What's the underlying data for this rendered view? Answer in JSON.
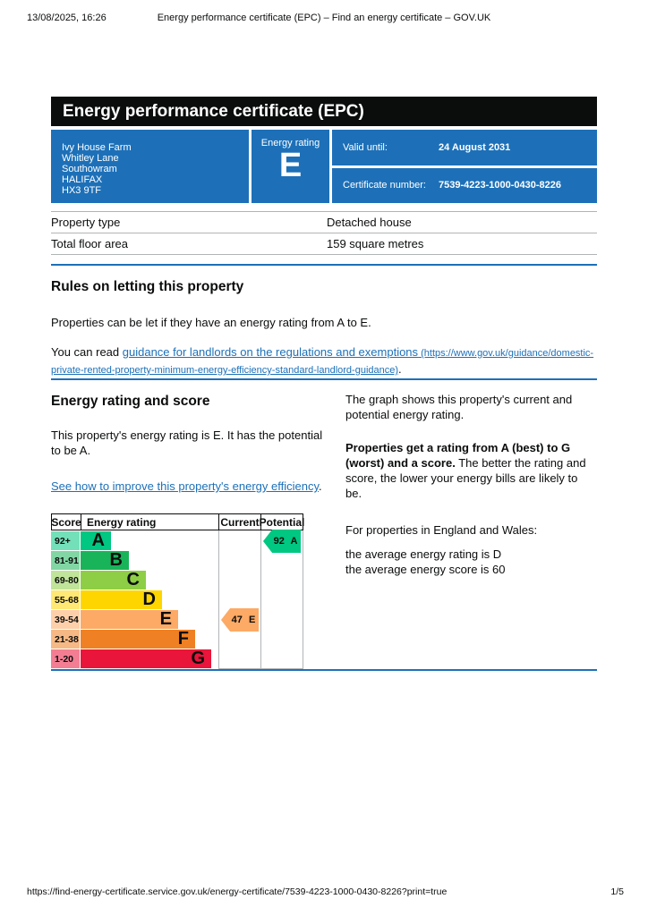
{
  "print_header": {
    "datetime": "13/08/2025, 16:26",
    "title": "Energy performance certificate (EPC) – Find an energy certificate – GOV.UK"
  },
  "print_footer": {
    "url": "https://find-energy-certificate.service.gov.uk/energy-certificate/7539-4223-1000-0430-8226?print=true",
    "page_number": "1/5"
  },
  "banner": {
    "title": "Energy performance certificate (EPC)"
  },
  "summary": {
    "address_lines": [
      "Ivy House Farm",
      "Whitley Lane",
      "Southowram",
      "HALIFAX",
      "HX3 9TF"
    ],
    "energy_rating_label": "Energy rating",
    "energy_rating_value": "E",
    "valid_until_label": "Valid until:",
    "valid_until_value": "24 August 2031",
    "certificate_number_label": "Certificate number:",
    "certificate_number_value": "7539-4223-1000-0430-8226"
  },
  "property": {
    "rows": [
      {
        "label": "Property type",
        "value": "Detached house"
      },
      {
        "label": "Total floor area",
        "value": "159 square metres"
      }
    ]
  },
  "rules_section": {
    "heading": "Rules on letting this property",
    "paragraph1": "Properties can be let if they have an energy rating from A to E.",
    "paragraph2_prefix": "You can read ",
    "link_text": "guidance for landlords on the regulations and exemptions",
    "link_url_text": " (https://www.gov.uk/guidance/domestic-private-rented-property-minimum-energy-efficiency-standard-landlord-guidance)",
    "paragraph2_suffix": "."
  },
  "rating_section": {
    "heading": "Energy rating and score",
    "paragraph1": "This property's energy rating is E. It has the potential to be A.",
    "improve_link_text": "See how to improve this property's energy efficiency",
    "improve_link_suffix": "."
  },
  "explanation": {
    "paragraph1": "The graph shows this property's current and potential energy rating.",
    "paragraph2_bold": "Properties get a rating from A (best) to G (worst) and a score.",
    "paragraph2_rest": " The better the rating and score, the lower your energy bills are likely to be.",
    "paragraph3": "For properties in England and Wales:",
    "average_rating_line": "the average energy rating is D",
    "average_score_line": "the average energy score is 60"
  },
  "chart_data": {
    "type": "bar",
    "title": "Energy rating and score chart",
    "headers": [
      "Score",
      "Energy rating",
      "Current",
      "Potential"
    ],
    "bands": [
      {
        "score_range": "92+",
        "letter": "A",
        "color": "#00c781"
      },
      {
        "score_range": "81-91",
        "letter": "B",
        "color": "#19b459"
      },
      {
        "score_range": "69-80",
        "letter": "C",
        "color": "#8dce46"
      },
      {
        "score_range": "55-68",
        "letter": "D",
        "color": "#ffd500"
      },
      {
        "score_range": "39-54",
        "letter": "E",
        "color": "#fcaa65"
      },
      {
        "score_range": "21-38",
        "letter": "F",
        "color": "#ef8023"
      },
      {
        "score_range": "1-20",
        "letter": "G",
        "color": "#e9153b"
      }
    ],
    "current": {
      "score": 47,
      "band": "E",
      "label": "47 E"
    },
    "potential": {
      "score": 92,
      "band": "A",
      "label": "92 A"
    }
  },
  "colors": {
    "govuk_blue": "#1d70b8",
    "link_blue": "#1d70b8",
    "banner_black": "#0b0c0c",
    "border_gray": "#b1b4b6"
  }
}
